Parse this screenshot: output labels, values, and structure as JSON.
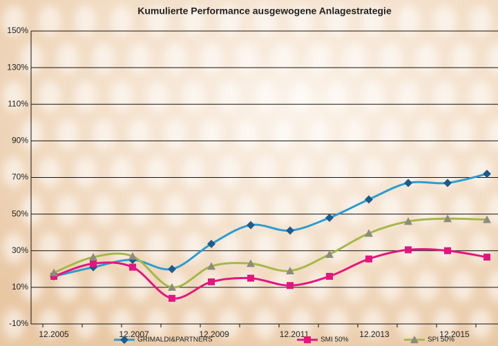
{
  "chart_data": {
    "type": "line",
    "title": "Kumulierte Performance ausgewogene Anlagestrategie",
    "categories": [
      "12.2005",
      null,
      "12.2007",
      null,
      "12.2009",
      null,
      "12.2011",
      null,
      "12.2013",
      null,
      "12.2015",
      null
    ],
    "series": [
      {
        "name": "GRIMALDI&PARTNERS",
        "color": "#2a9dd3",
        "marker": "diamond",
        "values": [
          16,
          21,
          25,
          20,
          33.7,
          44,
          41,
          48,
          58,
          67,
          67,
          72
        ]
      },
      {
        "name": "SMI 50%",
        "color": "#e3167f",
        "marker": "square",
        "values": [
          16,
          23,
          21,
          4,
          13,
          15,
          11,
          16,
          25.5,
          30.5,
          30,
          26.5
        ]
      },
      {
        "name": "SPI 50%",
        "color": "#a3b84a",
        "marker": "triangle",
        "values": [
          18,
          26.5,
          27,
          10,
          21.5,
          23,
          19,
          28,
          39.5,
          46,
          47.5,
          47
        ]
      }
    ],
    "ylim": [
      -10,
      150
    ],
    "yticks": [
      {
        "value": -10,
        "label": "-10%"
      },
      {
        "value": 10,
        "label": "10%"
      },
      {
        "value": 30,
        "label": "30%"
      },
      {
        "value": 50,
        "label": "50%"
      },
      {
        "value": 70,
        "label": "70%"
      },
      {
        "value": 90,
        "label": "90%"
      },
      {
        "value": 110,
        "label": "110%"
      },
      {
        "value": 130,
        "label": "130%"
      },
      {
        "value": 150,
        "label": "150%"
      }
    ],
    "grid": true,
    "legend": "bottom"
  }
}
